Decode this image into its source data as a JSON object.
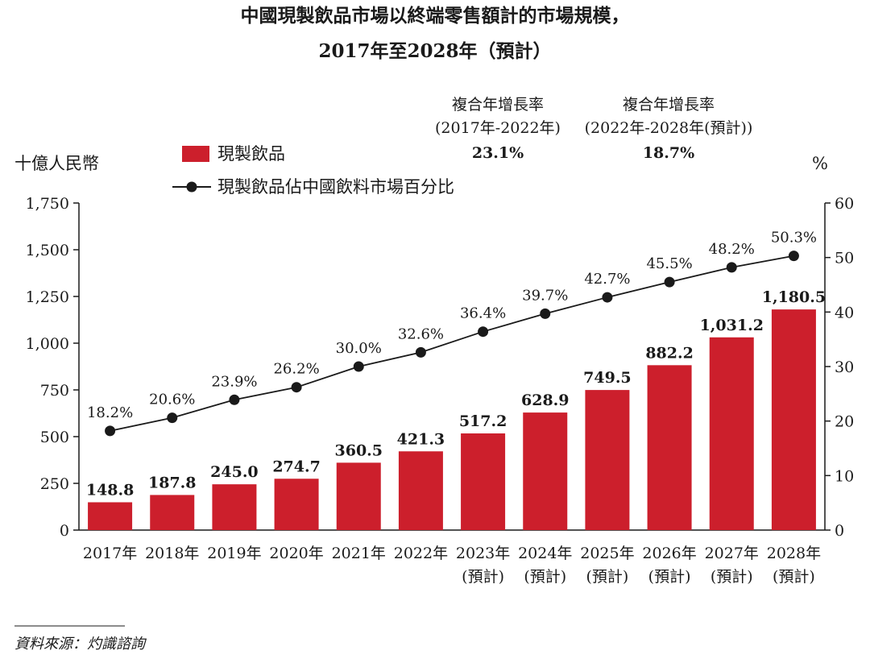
{
  "chart_data": {
    "type": "bar",
    "title": [
      "中國現製飲品市場以終端零售額計的市場規模，",
      "2017年至2028年（預計）"
    ],
    "categories": [
      [
        "2017年"
      ],
      [
        "2018年"
      ],
      [
        "2019年"
      ],
      [
        "2020年"
      ],
      [
        "2021年"
      ],
      [
        "2022年"
      ],
      [
        "2023年",
        "(預計)"
      ],
      [
        "2024年",
        "(預計)"
      ],
      [
        "2025年",
        "(預計)"
      ],
      [
        "2026年",
        "(預計)"
      ],
      [
        "2027年",
        "(預計)"
      ],
      [
        "2028年",
        "(預計)"
      ]
    ],
    "series": [
      {
        "name": "現製飲品",
        "type": "bar",
        "axis": "left",
        "color": "#cc1f2c",
        "values": [
          148.8,
          187.8,
          245.0,
          274.7,
          360.5,
          421.3,
          517.2,
          628.9,
          749.5,
          882.2,
          1031.2,
          1180.5
        ],
        "labels": [
          "148.8",
          "187.8",
          "245.0",
          "274.7",
          "360.5",
          "421.3",
          "517.2",
          "628.9",
          "749.5",
          "882.2",
          "1,031.2",
          "1,180.5"
        ]
      },
      {
        "name": "現製飲品佔中國飲料市場百分比",
        "type": "line",
        "axis": "right",
        "color": "#1a1a1a",
        "values": [
          18.2,
          20.6,
          23.9,
          26.2,
          30.0,
          32.6,
          36.4,
          39.7,
          42.7,
          45.5,
          48.2,
          50.3
        ],
        "labels": [
          "18.2%",
          "20.6%",
          "23.9%",
          "26.2%",
          "30.0%",
          "32.6%",
          "36.4%",
          "39.7%",
          "42.7%",
          "45.5%",
          "48.2%",
          "50.3%"
        ]
      }
    ],
    "y_left": {
      "unit": "十億人民幣",
      "ylim": [
        0,
        1750
      ],
      "ticks": [
        0,
        250,
        500,
        750,
        1000,
        1250,
        1500,
        1750
      ],
      "tick_labels": [
        "0",
        "250",
        "500",
        "750",
        "1,000",
        "1,250",
        "1,500",
        "1,750"
      ]
    },
    "y_right": {
      "unit": "%",
      "ylim": [
        0,
        60
      ],
      "ticks": [
        0,
        10,
        20,
        30,
        40,
        50,
        60
      ],
      "tick_labels": [
        "0",
        "10",
        "20",
        "30",
        "40",
        "50",
        "60"
      ]
    },
    "cagr": [
      {
        "title": "複合年增長率",
        "period": "(2017年-2022年)",
        "value": "23.1%"
      },
      {
        "title": "複合年增長率",
        "period": "(2022年-2028年(預計))",
        "value": "18.7%"
      }
    ],
    "legend_placement": "top-left",
    "grid": false,
    "source": "資料來源：灼識諮詢"
  }
}
